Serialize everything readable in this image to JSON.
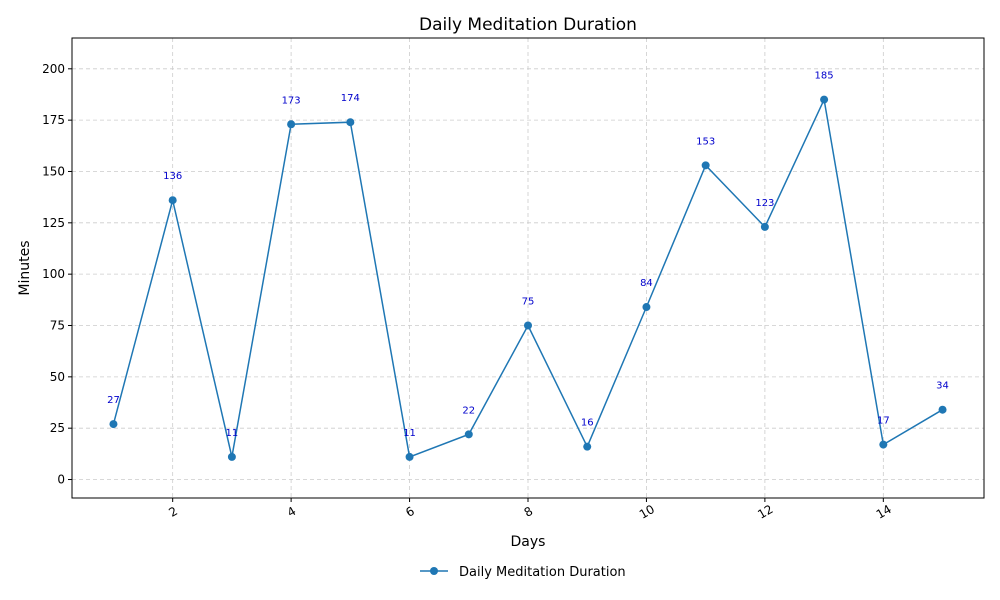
{
  "chart_data": {
    "type": "line",
    "title": "Daily Meditation Duration",
    "xlabel": "Days",
    "ylabel": "Minutes",
    "x": [
      1,
      2,
      3,
      4,
      5,
      6,
      7,
      8,
      9,
      10,
      11,
      12,
      13,
      14,
      15
    ],
    "series": [
      {
        "name": "Daily Meditation Duration",
        "values": [
          27,
          136,
          11,
          173,
          174,
          11,
          22,
          75,
          16,
          84,
          153,
          123,
          185,
          17,
          34
        ],
        "color": "#1f77b4"
      }
    ],
    "x_ticks": [
      2,
      4,
      6,
      8,
      10,
      12,
      14
    ],
    "y_ticks": [
      0,
      25,
      50,
      75,
      100,
      125,
      150,
      175,
      200
    ],
    "xlim": [
      0.3,
      15.7
    ],
    "ylim": [
      -9,
      215
    ],
    "grid": true,
    "legend_position": "bottom-center",
    "data_label_color": "#0000cc"
  }
}
